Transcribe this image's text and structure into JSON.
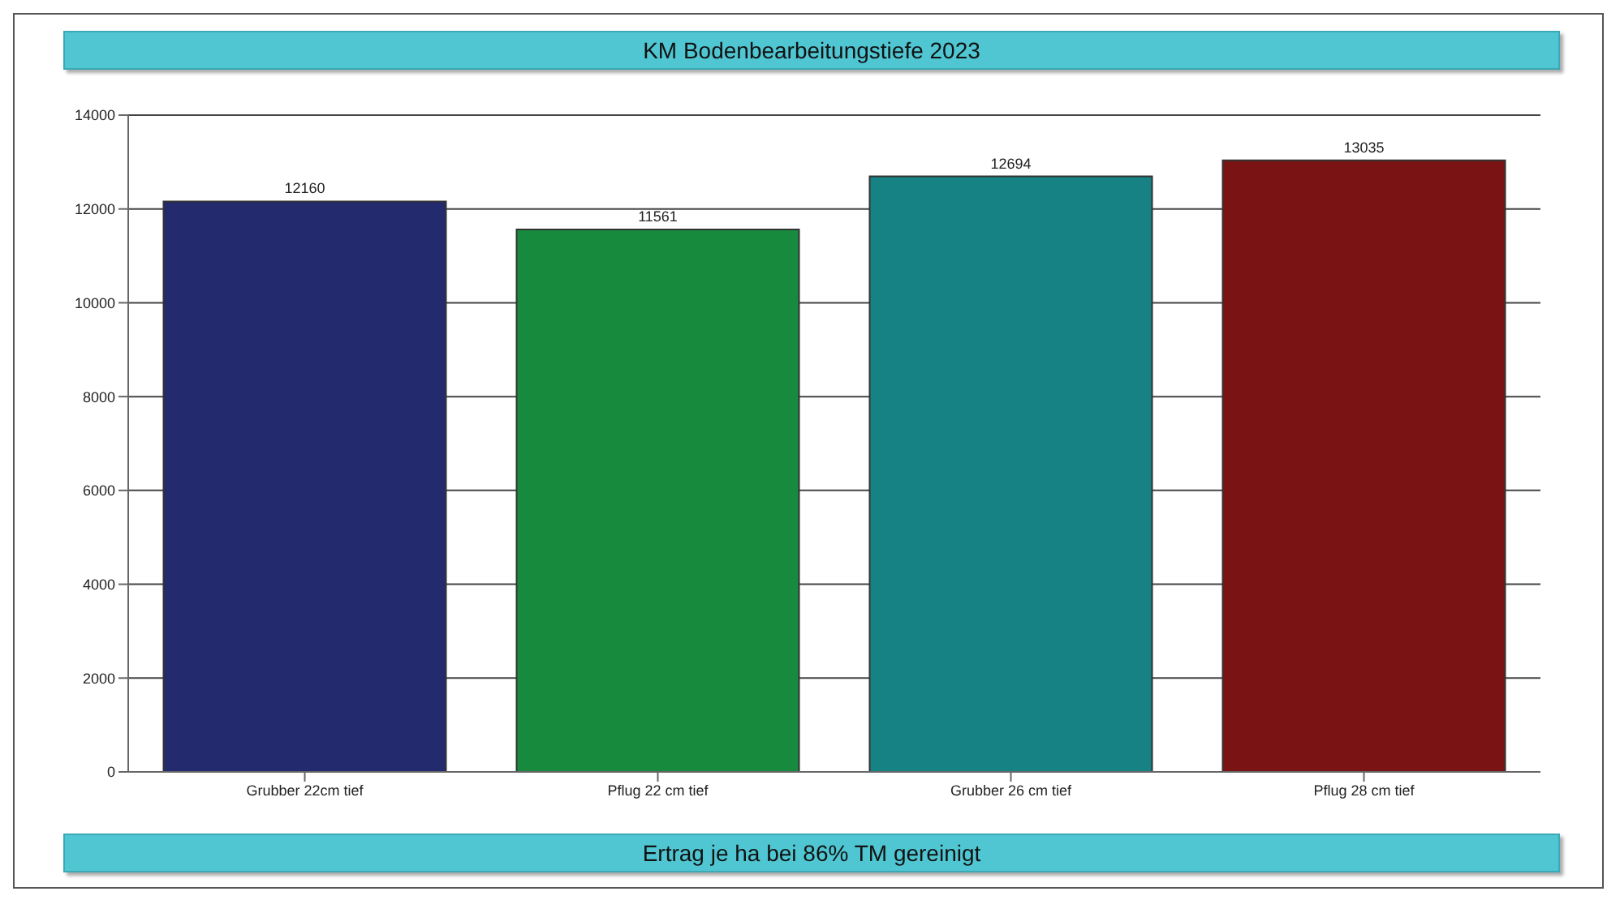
{
  "chart_data": {
    "type": "bar",
    "title": "KM Bodenbearbeitungstiefe 2023",
    "categories": [
      "Grubber 22cm tief",
      "Pflug 22 cm tief",
      "Grubber 26 cm tief",
      "Pflug 28 cm tief"
    ],
    "values": [
      12160,
      11561,
      12694,
      13035
    ],
    "colors": [
      "#232a6e",
      "#178a3e",
      "#168283",
      "#7a1414"
    ],
    "ylim": [
      0,
      14000
    ],
    "yticks": [
      0,
      2000,
      4000,
      6000,
      8000,
      10000,
      12000,
      14000
    ],
    "grid": "y",
    "data_labels": true,
    "annotations": [
      "Ertrag je ha bei 86% TM gereinigt"
    ]
  }
}
